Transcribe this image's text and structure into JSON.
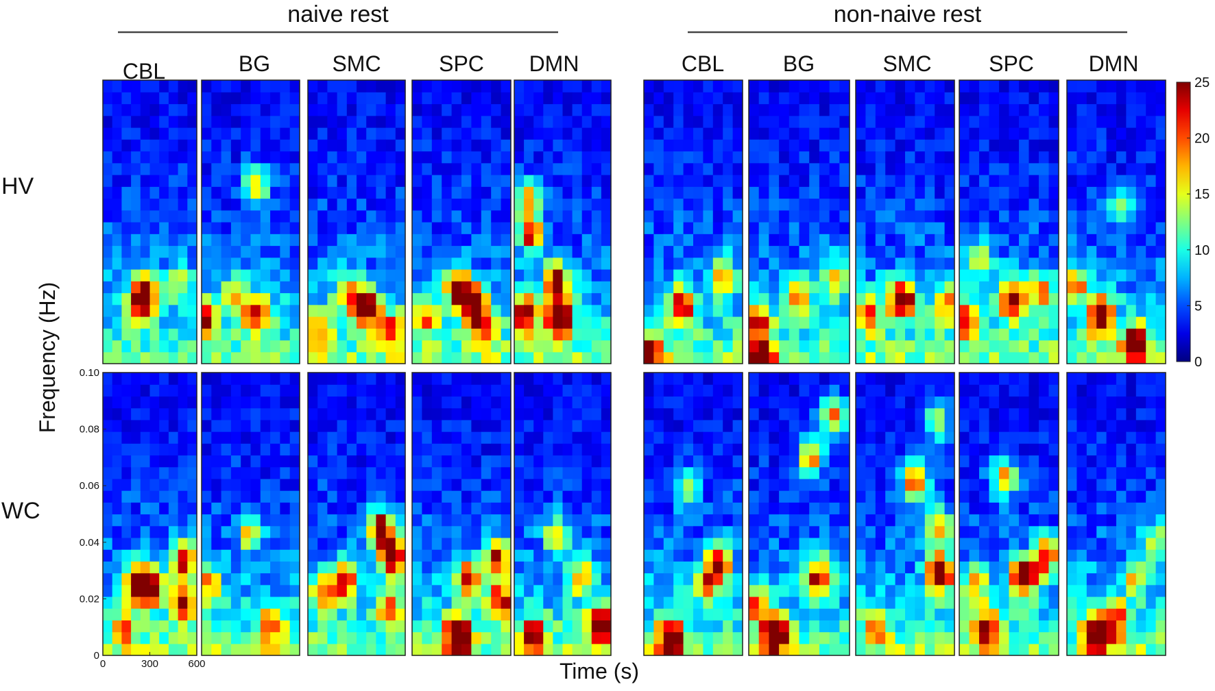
{
  "chart_data": {
    "type": "heatmap",
    "groups": [
      {
        "title": "naive rest",
        "panels": [
          "CBL",
          "BG",
          "SMC",
          "SPC",
          "DMN"
        ]
      },
      {
        "title": "non-naive rest",
        "panels": [
          "CBL",
          "BG",
          "SMC",
          "SPC",
          "DMN"
        ]
      }
    ],
    "rows": [
      "HV",
      "WC"
    ],
    "xlabel": "Time (s)",
    "ylabel": "Frequency (Hz)",
    "xlim": [
      0,
      600
    ],
    "ylim": [
      0,
      0.1
    ],
    "x_ticks": [
      "0",
      "300",
      "600"
    ],
    "y_ticks": [
      "0",
      "0.02",
      "0.04",
      "0.06",
      "0.08",
      "0.10"
    ],
    "colorbar": {
      "min": 0,
      "max": 25,
      "ticks": [
        "0",
        "5",
        "10",
        "15",
        "20",
        "25"
      ],
      "colormap": "jet"
    },
    "grid": {
      "time_bins": 10,
      "freq_bins": 24
    },
    "hotspots": [
      {
        "row": "HV",
        "group": "naive rest",
        "panel": "CBL",
        "points": [
          [
            280,
            0.025,
            18
          ],
          [
            230,
            0.022,
            13
          ],
          [
            480,
            0.029,
            10
          ]
        ]
      },
      {
        "row": "HV",
        "group": "naive rest",
        "panel": "BG",
        "points": [
          [
            20,
            0.017,
            17
          ],
          [
            340,
            0.018,
            18
          ],
          [
            330,
            0.063,
            14
          ],
          [
            200,
            0.024,
            10
          ]
        ]
      },
      {
        "row": "HV",
        "group": "naive rest",
        "panel": "SMC",
        "points": [
          [
            360,
            0.02,
            25
          ],
          [
            240,
            0.025,
            12
          ],
          [
            520,
            0.012,
            13
          ],
          [
            60,
            0.013,
            12
          ]
        ]
      },
      {
        "row": "HV",
        "group": "naive rest",
        "panel": "SPC",
        "points": [
          [
            380,
            0.021,
            24
          ],
          [
            280,
            0.027,
            20
          ],
          [
            100,
            0.017,
            11
          ],
          [
            440,
            0.012,
            12
          ]
        ]
      },
      {
        "row": "HV",
        "group": "naive rest",
        "panel": "DMN",
        "points": [
          [
            280,
            0.017,
            25
          ],
          [
            260,
            0.03,
            20
          ],
          [
            70,
            0.018,
            20
          ],
          [
            100,
            0.046,
            18
          ],
          [
            80,
            0.058,
            14
          ]
        ]
      },
      {
        "row": "HV",
        "group": "non-naive rest",
        "panel": "CBL",
        "points": [
          [
            230,
            0.021,
            18
          ],
          [
            490,
            0.031,
            12
          ],
          [
            40,
            0.003,
            15
          ]
        ]
      },
      {
        "row": "HV",
        "group": "non-naive rest",
        "panel": "BG",
        "points": [
          [
            80,
            0.001,
            25
          ],
          [
            50,
            0.015,
            16
          ],
          [
            300,
            0.025,
            12
          ],
          [
            500,
            0.03,
            11
          ]
        ]
      },
      {
        "row": "HV",
        "group": "non-naive rest",
        "panel": "SMC",
        "points": [
          [
            280,
            0.023,
            25
          ],
          [
            80,
            0.018,
            13
          ],
          [
            560,
            0.021,
            12
          ]
        ]
      },
      {
        "row": "HV",
        "group": "non-naive rest",
        "panel": "SPC",
        "points": [
          [
            320,
            0.023,
            19
          ],
          [
            40,
            0.016,
            16
          ],
          [
            500,
            0.025,
            13
          ],
          [
            120,
            0.036,
            10
          ]
        ]
      },
      {
        "row": "HV",
        "group": "non-naive rest",
        "panel": "DMN",
        "points": [
          [
            200,
            0.017,
            21
          ],
          [
            420,
            0.007,
            20
          ],
          [
            60,
            0.028,
            12
          ],
          [
            330,
            0.055,
            9
          ]
        ]
      },
      {
        "row": "WC",
        "group": "naive rest",
        "panel": "CBL",
        "points": [
          [
            220,
            0.026,
            23
          ],
          [
            320,
            0.024,
            17
          ],
          [
            520,
            0.034,
            20
          ],
          [
            510,
            0.019,
            18
          ],
          [
            140,
            0.01,
            12
          ]
        ]
      },
      {
        "row": "WC",
        "group": "naive rest",
        "panel": "BG",
        "points": [
          [
            300,
            0.044,
            12
          ],
          [
            40,
            0.025,
            12
          ],
          [
            420,
            0.01,
            12
          ]
        ]
      },
      {
        "row": "WC",
        "group": "naive rest",
        "panel": "SMC",
        "points": [
          [
            520,
            0.035,
            25
          ],
          [
            450,
            0.045,
            22
          ],
          [
            220,
            0.026,
            18
          ],
          [
            100,
            0.022,
            13
          ],
          [
            500,
            0.018,
            12
          ]
        ]
      },
      {
        "row": "WC",
        "group": "naive rest",
        "panel": "SPC",
        "points": [
          [
            280,
            0.007,
            25
          ],
          [
            340,
            0.027,
            18
          ],
          [
            520,
            0.035,
            17
          ],
          [
            540,
            0.02,
            16
          ]
        ]
      },
      {
        "row": "WC",
        "group": "naive rest",
        "panel": "DMN",
        "points": [
          [
            540,
            0.011,
            21
          ],
          [
            120,
            0.007,
            16
          ],
          [
            420,
            0.028,
            12
          ],
          [
            260,
            0.043,
            11
          ]
        ]
      },
      {
        "row": "WC",
        "group": "non-naive rest",
        "panel": "CBL",
        "points": [
          [
            160,
            0.006,
            21
          ],
          [
            460,
            0.033,
            17
          ],
          [
            380,
            0.026,
            14
          ],
          [
            260,
            0.06,
            10
          ]
        ]
      },
      {
        "row": "WC",
        "group": "non-naive rest",
        "panel": "BG",
        "points": [
          [
            160,
            0.008,
            25
          ],
          [
            420,
            0.028,
            18
          ],
          [
            370,
            0.07,
            15
          ],
          [
            500,
            0.085,
            16
          ],
          [
            50,
            0.018,
            12
          ]
        ]
      },
      {
        "row": "WC",
        "group": "non-naive rest",
        "panel": "SMC",
        "points": [
          [
            510,
            0.029,
            25
          ],
          [
            360,
            0.062,
            17
          ],
          [
            510,
            0.046,
            13
          ],
          [
            120,
            0.01,
            11
          ],
          [
            500,
            0.083,
            11
          ]
        ]
      },
      {
        "row": "WC",
        "group": "non-naive rest",
        "panel": "SPC",
        "points": [
          [
            390,
            0.028,
            23
          ],
          [
            520,
            0.035,
            17
          ],
          [
            170,
            0.01,
            16
          ],
          [
            270,
            0.063,
            14
          ],
          [
            100,
            0.025,
            11
          ]
        ]
      },
      {
        "row": "WC",
        "group": "non-naive rest",
        "panel": "DMN",
        "points": [
          [
            180,
            0.007,
            25
          ],
          [
            300,
            0.013,
            14
          ],
          [
            420,
            0.028,
            11
          ],
          [
            540,
            0.04,
            10
          ]
        ]
      }
    ]
  }
}
